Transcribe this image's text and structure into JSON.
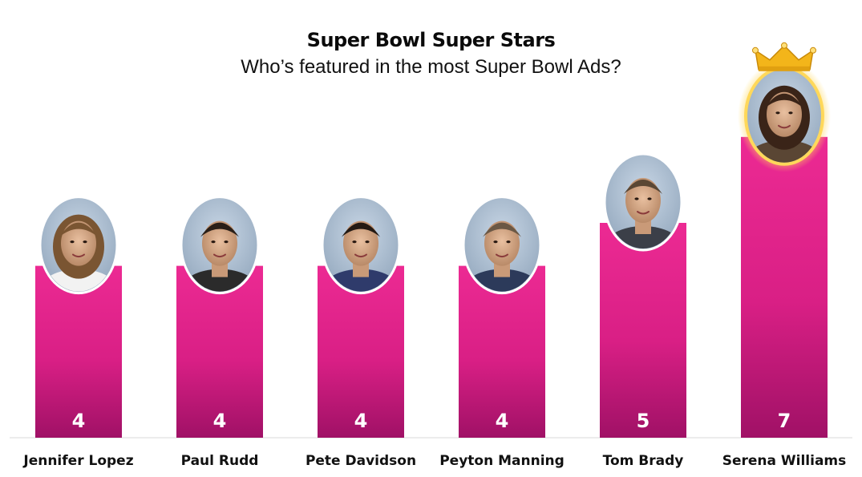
{
  "title": "Super Bowl Super Stars",
  "subtitle": "Who’s featured in the most Super Bowl Ads?",
  "colors": {
    "bar_top": "#ec2a93",
    "bar_bottom": "#a01166",
    "value_label": "#ffffff",
    "category_label": "#111111",
    "baseline": "#e6e6e6",
    "crown": "#f3b51a",
    "highlight_ring": "#ffd85a"
  },
  "chart_data": {
    "type": "bar",
    "title": "Super Bowl Super Stars",
    "subtitle": "Who’s featured in the most Super Bowl Ads?",
    "xlabel": "",
    "ylabel": "",
    "categories": [
      "Jennifer Lopez",
      "Paul Rudd",
      "Pete Davidson",
      "Peyton Manning",
      "Tom Brady",
      "Serena Williams"
    ],
    "values": [
      4,
      4,
      4,
      4,
      5,
      7
    ],
    "ylim": [
      0,
      7.5
    ],
    "grid": false,
    "legend": "none",
    "data_labels": "inside-bottom",
    "annotations": [
      "photo-portrait-above-each-bar",
      "crown-over-top-value"
    ],
    "icons": [
      "jennifer-lopez-portrait",
      "paul-rudd-portrait",
      "pete-davidson-portrait",
      "peyton-manning-portrait",
      "tom-brady-portrait",
      "serena-williams-portrait",
      "crown-icon"
    ]
  }
}
